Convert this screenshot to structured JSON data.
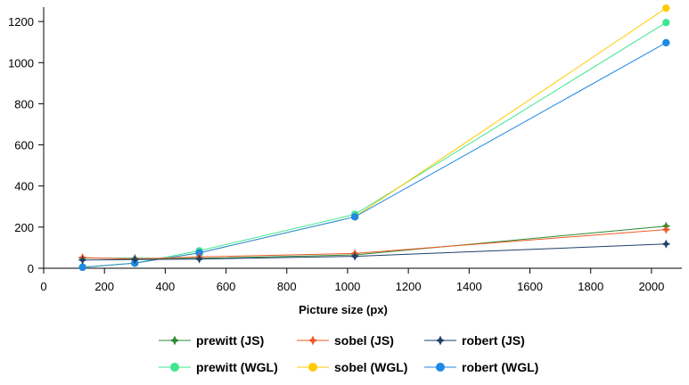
{
  "chart_data": {
    "type": "line",
    "title": "",
    "xlabel": "Picture size (px)",
    "ylabel": "",
    "xlim": [
      0,
      2100
    ],
    "ylim": [
      0,
      1270
    ],
    "xticks": [
      0,
      200,
      400,
      600,
      800,
      1000,
      1200,
      1400,
      1600,
      1800,
      2000
    ],
    "yticks": [
      0,
      200,
      400,
      600,
      800,
      1000,
      1200
    ],
    "x": [
      128,
      300,
      512,
      1024,
      2048
    ],
    "grid": false,
    "legend_position": "bottom",
    "series": [
      {
        "name": "prewitt (JS)",
        "marker": "star",
        "color": "#2e8b35",
        "values": [
          50,
          48,
          48,
          65,
          205
        ]
      },
      {
        "name": "sobel (JS)",
        "marker": "star",
        "color": "#ee5a24",
        "values": [
          52,
          44,
          55,
          72,
          188
        ]
      },
      {
        "name": "robert (JS)",
        "marker": "star",
        "color": "#1f3f6b",
        "values": [
          40,
          42,
          45,
          58,
          118
        ]
      },
      {
        "name": "prewitt (WGL)",
        "marker": "circle",
        "color": "#3ee68f",
        "values": [
          5,
          25,
          85,
          262,
          1195
        ]
      },
      {
        "name": "sobel (WGL)",
        "marker": "circle",
        "color": "#ffcc00",
        "values": [
          5,
          25,
          75,
          250,
          1265
        ]
      },
      {
        "name": "robert (WGL)",
        "marker": "circle",
        "color": "#1e88e5",
        "values": [
          5,
          25,
          75,
          250,
          1097
        ]
      }
    ]
  }
}
